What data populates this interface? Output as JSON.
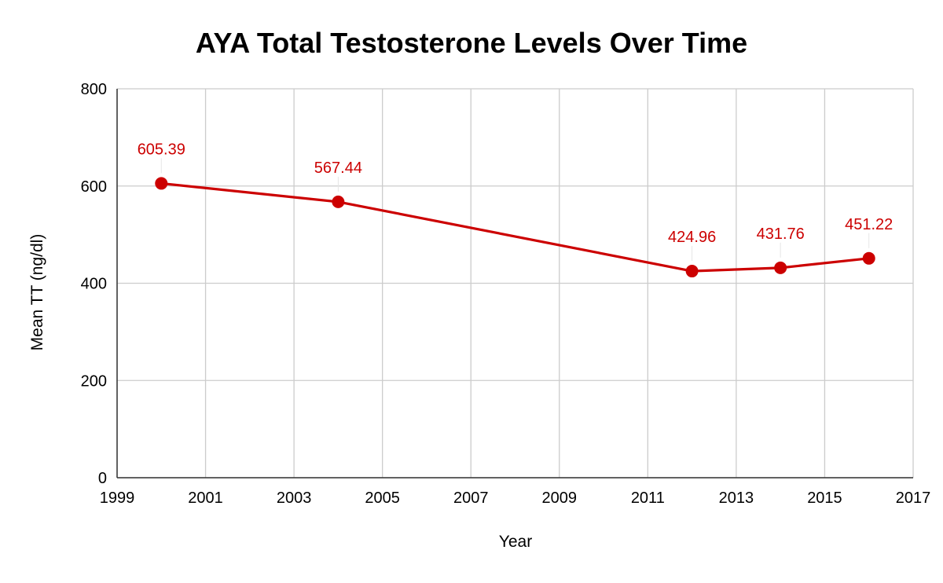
{
  "chart_data": {
    "type": "line",
    "title": "AYA Total Testosterone Levels Over Time",
    "xlabel": "Year",
    "ylabel": "Mean TT (ng/dl)",
    "xlim": [
      1999,
      2017
    ],
    "ylim": [
      0,
      800
    ],
    "x_ticks": [
      1999,
      2001,
      2003,
      2005,
      2007,
      2009,
      2011,
      2013,
      2015,
      2017
    ],
    "y_ticks": [
      0,
      200,
      400,
      600,
      800
    ],
    "grid": true,
    "series": [
      {
        "name": "Mean TT",
        "color": "#cc0000",
        "x": [
          2000,
          2004,
          2012,
          2014,
          2016
        ],
        "values": [
          605.39,
          567.44,
          424.96,
          431.76,
          451.22
        ],
        "labels": [
          "605.39",
          "567.44",
          "424.96",
          "431.76",
          "451.22"
        ]
      }
    ]
  }
}
